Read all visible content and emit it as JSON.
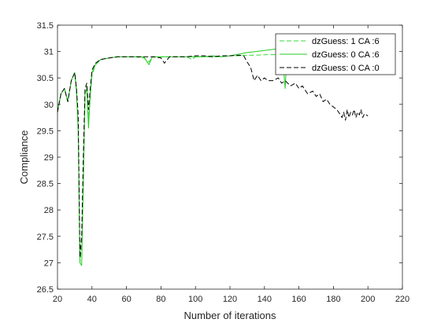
{
  "chart_data": {
    "type": "line",
    "title": "",
    "xlabel": "Number of iterations",
    "ylabel": "Compliance",
    "xlim": [
      20,
      220
    ],
    "ylim": [
      26.5,
      31.5
    ],
    "xticks": [
      "20",
      "40",
      "60",
      "80",
      "100",
      "120",
      "140",
      "160",
      "180",
      "200",
      "220"
    ],
    "yticks": [
      "26.5",
      "27",
      "27.5",
      "28",
      "28.5",
      "29",
      "29.5",
      "30",
      "30.5",
      "31",
      "31.5"
    ],
    "grid": false,
    "legend_position": "top-right",
    "series": [
      {
        "name": "dzGuess: 1 CA :6",
        "color": "#33dd33",
        "style": "dashed",
        "x": [
          20,
          22,
          24,
          26,
          28,
          30,
          31,
          32,
          33,
          34,
          35,
          36,
          37,
          38,
          39,
          40,
          42,
          45,
          50,
          55,
          60,
          65,
          70,
          73,
          75,
          80,
          85,
          90,
          95,
          98,
          100,
          105,
          110,
          115,
          120,
          125,
          130,
          135,
          140,
          145,
          150
        ],
        "y": [
          29.9,
          30.2,
          30.3,
          30.05,
          30.45,
          30.6,
          30.2,
          29.5,
          27.0,
          27.3,
          28.5,
          30.2,
          30.35,
          29.7,
          30.1,
          30.55,
          30.75,
          30.85,
          30.88,
          30.9,
          30.9,
          30.9,
          30.88,
          30.8,
          30.9,
          30.9,
          30.9,
          30.9,
          30.9,
          30.85,
          30.9,
          30.9,
          30.9,
          30.9,
          30.92,
          30.92,
          30.93,
          30.93,
          30.94,
          30.94,
          30.95
        ]
      },
      {
        "name": "dzGuess: 0 CA :6",
        "color": "#22cc22",
        "style": "solid",
        "x": [
          20,
          22,
          24,
          26,
          28,
          30,
          31,
          32,
          33,
          34,
          35,
          36,
          37,
          38,
          39,
          40,
          42,
          45,
          50,
          55,
          60,
          65,
          70,
          73,
          75,
          80,
          85,
          90,
          95,
          100,
          105,
          110,
          115,
          120,
          125,
          130,
          135,
          140,
          145,
          150,
          151,
          152,
          153,
          155
        ],
        "y": [
          29.85,
          30.2,
          30.3,
          30.05,
          30.45,
          30.6,
          30.3,
          29.5,
          27.0,
          26.95,
          28.5,
          30.2,
          30.3,
          29.55,
          30.2,
          30.6,
          30.75,
          30.85,
          30.88,
          30.9,
          30.9,
          30.9,
          30.9,
          30.75,
          30.9,
          30.9,
          30.9,
          30.9,
          30.9,
          30.9,
          30.9,
          30.92,
          30.9,
          30.92,
          30.95,
          30.98,
          31.0,
          31.02,
          31.04,
          31.06,
          30.7,
          30.3,
          30.9,
          31.07
        ]
      },
      {
        "name": "dzGuess: 0 CA :0",
        "color": "#000000",
        "style": "dashed",
        "x": [
          20,
          22,
          24,
          26,
          28,
          30,
          31,
          32,
          33,
          34,
          35,
          36,
          37,
          38,
          39,
          40,
          42,
          45,
          50,
          55,
          60,
          65,
          70,
          75,
          80,
          82,
          85,
          90,
          95,
          100,
          105,
          110,
          115,
          120,
          125,
          128,
          130,
          132,
          134,
          136,
          138,
          140,
          142,
          145,
          148,
          150,
          152,
          155,
          158,
          160,
          162,
          165,
          168,
          170,
          172,
          174,
          176,
          178,
          180,
          182,
          184,
          185,
          186,
          187,
          188,
          189,
          190,
          191,
          192,
          193,
          194,
          195,
          196,
          197,
          198,
          200
        ],
        "y": [
          29.85,
          30.2,
          30.3,
          30.05,
          30.45,
          30.6,
          30.3,
          29.8,
          27.1,
          27.5,
          29.0,
          30.3,
          30.4,
          29.9,
          30.3,
          30.65,
          30.78,
          30.85,
          30.88,
          30.9,
          30.9,
          30.9,
          30.9,
          30.9,
          30.88,
          30.78,
          30.9,
          30.9,
          30.9,
          30.92,
          30.92,
          30.9,
          30.92,
          30.92,
          30.93,
          30.92,
          30.8,
          30.7,
          30.45,
          30.55,
          30.45,
          30.5,
          30.45,
          30.45,
          30.5,
          30.4,
          30.45,
          30.35,
          30.4,
          30.3,
          30.35,
          30.2,
          30.25,
          30.15,
          30.2,
          30.05,
          30.1,
          30.0,
          29.95,
          29.9,
          29.8,
          29.75,
          29.85,
          29.7,
          29.9,
          29.75,
          29.85,
          29.8,
          29.9,
          29.75,
          29.85,
          29.8,
          29.9,
          29.75,
          29.82,
          29.78
        ]
      }
    ]
  }
}
